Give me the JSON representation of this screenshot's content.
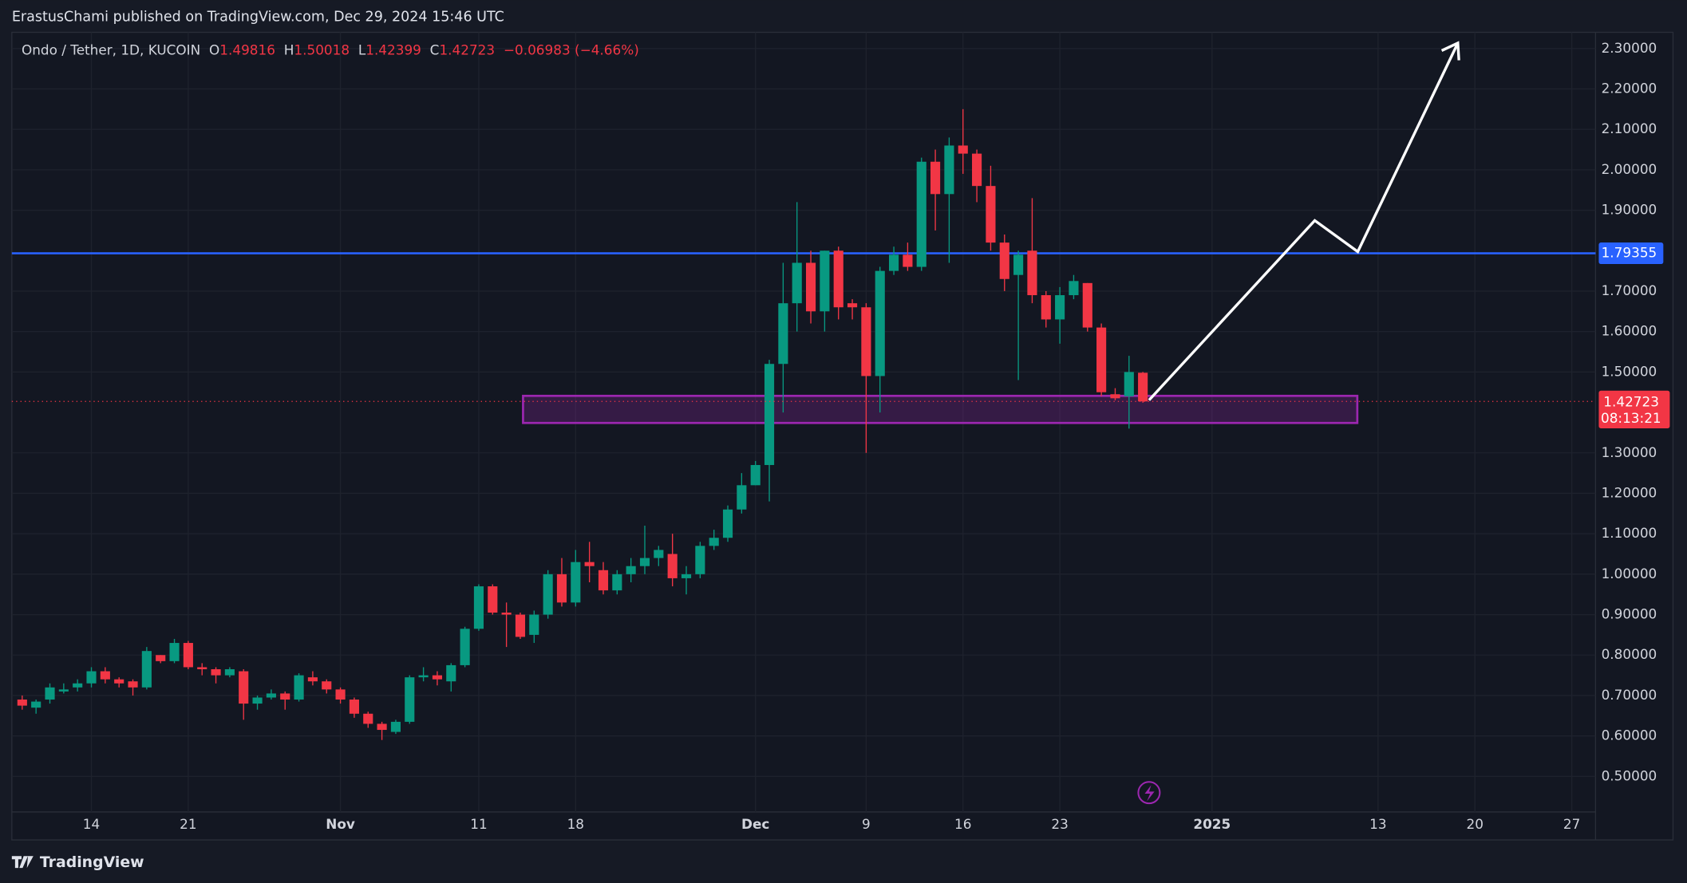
{
  "header": {
    "publisher": "ErastusChami published on TradingView.com, Dec 29, 2024 15:46 UTC"
  },
  "footer": {
    "brand": "TradingView"
  },
  "chart_data": {
    "type": "candlestick",
    "symbol": "Ondo / Tether, 1D, KUCOIN",
    "ohlc_labels": [
      "O",
      "H",
      "L",
      "C"
    ],
    "change": "−0.06983 (−4.66%)",
    "countdown": "08:13:21",
    "up_color": "#089981",
    "down_color": "#f23645",
    "grid": true,
    "x": [
      -5,
      -4,
      -3,
      -2,
      -1,
      0,
      1,
      2,
      3,
      4,
      5,
      6,
      7,
      8,
      9,
      10,
      11,
      12,
      13,
      14,
      15,
      16,
      17,
      18,
      19,
      20,
      21,
      22,
      23,
      24,
      25,
      26,
      27,
      28,
      29,
      30,
      31,
      32,
      33,
      34,
      35,
      36,
      37,
      38,
      39,
      40,
      41,
      42,
      43,
      44,
      45,
      46,
      47,
      48,
      49,
      50,
      51,
      52,
      53,
      54,
      55,
      56,
      57,
      58,
      59,
      60,
      61,
      62,
      63,
      64,
      65,
      66,
      67,
      68,
      69,
      70,
      71,
      72,
      73,
      74,
      75,
      76
    ],
    "open": [
      0.69,
      0.67,
      0.69,
      0.71,
      0.72,
      0.73,
      0.76,
      0.74,
      0.735,
      0.72,
      0.8,
      0.785,
      0.83,
      0.77,
      0.765,
      0.75,
      0.76,
      0.68,
      0.695,
      0.705,
      0.69,
      0.745,
      0.735,
      0.715,
      0.69,
      0.655,
      0.63,
      0.61,
      0.635,
      0.745,
      0.75,
      0.735,
      0.775,
      0.865,
      0.97,
      0.905,
      0.9,
      0.85,
      0.9,
      1.0,
      0.93,
      1.03,
      1.01,
      0.96,
      1.0,
      1.02,
      1.04,
      1.05,
      0.99,
      1.0,
      1.07,
      1.09,
      1.16,
      1.22,
      1.27,
      1.52,
      1.67,
      1.77,
      1.65,
      1.8,
      1.67,
      1.66,
      1.49,
      1.75,
      1.79,
      1.76,
      2.02,
      1.94,
      2.06,
      2.04,
      1.96,
      1.82,
      1.74,
      1.8,
      1.69,
      1.63,
      1.69,
      1.72,
      1.61,
      1.445,
      1.44,
      1.49816
    ],
    "high": [
      0.7,
      0.69,
      0.73,
      0.73,
      0.74,
      0.77,
      0.77,
      0.745,
      0.74,
      0.82,
      0.8,
      0.84,
      0.835,
      0.78,
      0.77,
      0.77,
      0.765,
      0.7,
      0.715,
      0.71,
      0.755,
      0.76,
      0.74,
      0.72,
      0.695,
      0.66,
      0.635,
      0.64,
      0.75,
      0.77,
      0.76,
      0.78,
      0.87,
      0.975,
      0.975,
      0.93,
      0.905,
      0.91,
      1.01,
      1.04,
      1.06,
      1.08,
      1.03,
      1.01,
      1.04,
      1.12,
      1.07,
      1.1,
      1.02,
      1.08,
      1.11,
      1.17,
      1.25,
      1.28,
      1.53,
      1.77,
      1.92,
      1.8,
      1.8,
      1.81,
      1.68,
      1.67,
      1.76,
      1.81,
      1.82,
      2.03,
      2.05,
      2.08,
      2.15,
      2.05,
      2.01,
      1.84,
      1.8,
      1.93,
      1.7,
      1.71,
      1.74,
      1.72,
      1.62,
      1.46,
      1.54,
      1.50018
    ],
    "low": [
      0.665,
      0.655,
      0.68,
      0.705,
      0.71,
      0.72,
      0.73,
      0.72,
      0.7,
      0.715,
      0.78,
      0.78,
      0.765,
      0.75,
      0.73,
      0.745,
      0.64,
      0.665,
      0.69,
      0.665,
      0.685,
      0.725,
      0.705,
      0.68,
      0.645,
      0.62,
      0.59,
      0.605,
      0.63,
      0.735,
      0.725,
      0.71,
      0.77,
      0.86,
      0.9,
      0.82,
      0.84,
      0.83,
      0.89,
      0.92,
      0.92,
      0.98,
      0.95,
      0.95,
      0.98,
      1.0,
      1.02,
      0.97,
      0.95,
      0.99,
      1.06,
      1.08,
      1.15,
      1.22,
      1.18,
      1.4,
      1.6,
      1.62,
      1.6,
      1.63,
      1.63,
      1.3,
      1.4,
      1.74,
      1.75,
      1.75,
      1.85,
      1.77,
      1.99,
      1.92,
      1.8,
      1.7,
      1.48,
      1.67,
      1.61,
      1.57,
      1.68,
      1.6,
      1.44,
      1.43,
      1.36,
      1.42399
    ],
    "close": [
      0.675,
      0.685,
      0.72,
      0.715,
      0.73,
      0.76,
      0.74,
      0.73,
      0.72,
      0.81,
      0.785,
      0.83,
      0.77,
      0.765,
      0.75,
      0.765,
      0.68,
      0.695,
      0.705,
      0.69,
      0.75,
      0.735,
      0.715,
      0.69,
      0.655,
      0.63,
      0.615,
      0.635,
      0.745,
      0.75,
      0.74,
      0.775,
      0.865,
      0.97,
      0.905,
      0.9,
      0.845,
      0.9,
      1.0,
      0.93,
      1.03,
      1.02,
      0.96,
      1.0,
      1.02,
      1.04,
      1.06,
      0.99,
      1.0,
      1.07,
      1.09,
      1.16,
      1.22,
      1.27,
      1.52,
      1.67,
      1.77,
      1.65,
      1.8,
      1.66,
      1.66,
      1.49,
      1.75,
      1.79,
      1.76,
      2.02,
      1.94,
      2.06,
      2.04,
      1.96,
      1.82,
      1.73,
      1.79,
      1.69,
      1.63,
      1.69,
      1.725,
      1.61,
      1.45,
      1.435,
      1.5,
      1.42723
    ],
    "xlim": [
      -5.75,
      108.72
    ],
    "xticks": [
      {
        "value": 0,
        "label": "14"
      },
      {
        "value": 7,
        "label": "21"
      },
      {
        "value": 18,
        "label": "Nov"
      },
      {
        "value": 28,
        "label": "11"
      },
      {
        "value": 35,
        "label": "18"
      },
      {
        "value": 48,
        "label": "Dec"
      },
      {
        "value": 56,
        "label": "9"
      },
      {
        "value": 63,
        "label": "16"
      },
      {
        "value": 70,
        "label": "23"
      },
      {
        "value": 81,
        "label": "2025"
      },
      {
        "value": 93,
        "label": "13"
      },
      {
        "value": 100,
        "label": "20"
      },
      {
        "value": 107,
        "label": "27"
      }
    ],
    "ylim": [
      0.412,
      2.34
    ],
    "yticks": [
      {
        "value": 0.5,
        "label": "0.50000"
      },
      {
        "value": 0.6,
        "label": "0.60000"
      },
      {
        "value": 0.7,
        "label": "0.70000"
      },
      {
        "value": 0.8,
        "label": "0.80000"
      },
      {
        "value": 0.9,
        "label": "0.90000"
      },
      {
        "value": 1.0,
        "label": "1.00000"
      },
      {
        "value": 1.1,
        "label": "1.10000"
      },
      {
        "value": 1.2,
        "label": "1.20000"
      },
      {
        "value": 1.3,
        "label": "1.30000"
      },
      {
        "value": 1.5,
        "label": "1.50000"
      },
      {
        "value": 1.6,
        "label": "1.60000"
      },
      {
        "value": 1.7,
        "label": "1.70000"
      },
      {
        "value": 1.9,
        "label": "1.90000"
      },
      {
        "value": 2.0,
        "label": "2.00000"
      },
      {
        "value": 2.1,
        "label": "2.10000"
      },
      {
        "value": 2.2,
        "label": "2.20000"
      },
      {
        "value": 2.3,
        "label": "2.30000"
      }
    ],
    "horizontal_line": {
      "value": 1.79355,
      "color": "#2962ff"
    },
    "zone": {
      "x_start": 31.2,
      "x_end": 91.5,
      "low": 1.374,
      "high": 1.441,
      "color": "#9c27b0"
    }
  }
}
